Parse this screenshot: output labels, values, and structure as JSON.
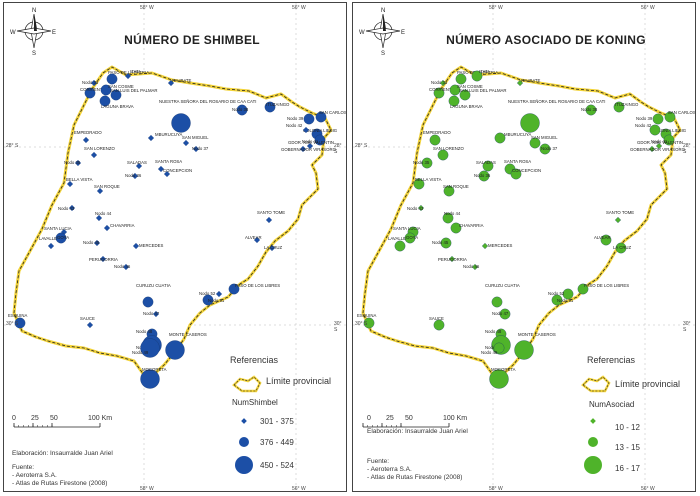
{
  "compass_labels": {
    "n": "N",
    "s": "S",
    "e": "E",
    "w": "W"
  },
  "graticule": {
    "top": [
      "58° W",
      "56° W"
    ],
    "bottom": [
      "58° W",
      "56° W"
    ],
    "lat": [
      "28° S",
      "30° S"
    ]
  },
  "scale": {
    "ticks": [
      "0",
      "25",
      "50",
      "100 Km"
    ]
  },
  "references_heading": "Referencias",
  "province_limit_label": "Límite provincial",
  "credits": {
    "elaboration": "Elaboración: Insaurralde Juan Ariel",
    "source_label": "Fuente:",
    "source_1": "- Aeroterra S.A.",
    "source_2": "- Atlas de Rutas Firestone (2008)"
  },
  "place_labels": [
    "PASO DE LA PATRIA",
    "ITATI",
    "Nodo 33",
    "CORRIENTES",
    "SAN COSME",
    "SAN LUIS DEL PALMAR",
    "LAGUNA BRAVA",
    "ITA IBATE",
    "NUESTRA SEÑORA DEL ROSARIO DE CAA CATI",
    "Nodo 38",
    "ITUZAINGO",
    "SAN CARLOS",
    "Nodo 39",
    "COLONIA LIEBIG",
    "Nodo 41",
    "Nodo 42",
    "GOBERNADOR VIRASORO",
    "GDOR. IGR. VALENTIN",
    "SAN MIGUEL",
    "Nodo 37",
    "EMPEDRADO",
    "SAN LORENZO",
    "MBURUCUYA",
    "SALADAS",
    "SANTA ROSA",
    "Nodo 35",
    "Nodo 36",
    "CONCEPCION",
    "BELLA VISTA",
    "SAN ROQUE",
    "Nodo 43",
    "Nodo 44",
    "CHAVARRIA",
    "SANTA LUCIA",
    "GOYA",
    "LAVALLE",
    "Nodo 45",
    "MERCEDES",
    "PERUGORRIA",
    "Nodo 46",
    "SANTO TOME",
    "ALVEAR",
    "LA CRUZ",
    "Nodo 52",
    "PASO DE LOS LIBRES",
    "Nodo 51",
    "CURUZU CUATIA",
    "Nodo 47",
    "ESQUINA",
    "SAUCE",
    "Nodo 48",
    "Nodo 50",
    "Nodo 49",
    "MONTE CASEROS",
    "MOCORETA"
  ],
  "maps": [
    {
      "title": "NÚMERO DE SHIMBEL",
      "legend_title": "NumShimbel",
      "legend_classes": [
        "301 - 375",
        "376 - 449",
        "450 - 524"
      ],
      "symbol_shape": "diamond-to-circle",
      "color": "#1c4fa6",
      "class_by_place": [
        2,
        1,
        1,
        2,
        2,
        2,
        2,
        1,
        3,
        2,
        2,
        2,
        2,
        2,
        2,
        1,
        1,
        1,
        1,
        1,
        1,
        1,
        1,
        1,
        1,
        1,
        1,
        1,
        1,
        1,
        1,
        1,
        1,
        1,
        2,
        1,
        1,
        1,
        1,
        1,
        1,
        1,
        1,
        1,
        2,
        2,
        2,
        1,
        2,
        1,
        2,
        3,
        3,
        3,
        3
      ]
    },
    {
      "title": "NÚMERO ASOCIADO DE KONING",
      "legend_title": "NumAsociad",
      "legend_classes": [
        "10 - 12",
        "13 - 15",
        "16 - 17"
      ],
      "symbol_shape": "diamond-to-circle",
      "color": "#4fb32a",
      "class_by_place": [
        2,
        2,
        1,
        2,
        2,
        2,
        2,
        1,
        3,
        2,
        2,
        2,
        2,
        2,
        2,
        2,
        1,
        1,
        2,
        2,
        2,
        2,
        2,
        2,
        2,
        2,
        2,
        2,
        2,
        2,
        1,
        2,
        2,
        2,
        2,
        2,
        2,
        1,
        1,
        1,
        1,
        2,
        2,
        2,
        2,
        2,
        2,
        2,
        2,
        2,
        2,
        3,
        2,
        3,
        3
      ]
    }
  ]
}
